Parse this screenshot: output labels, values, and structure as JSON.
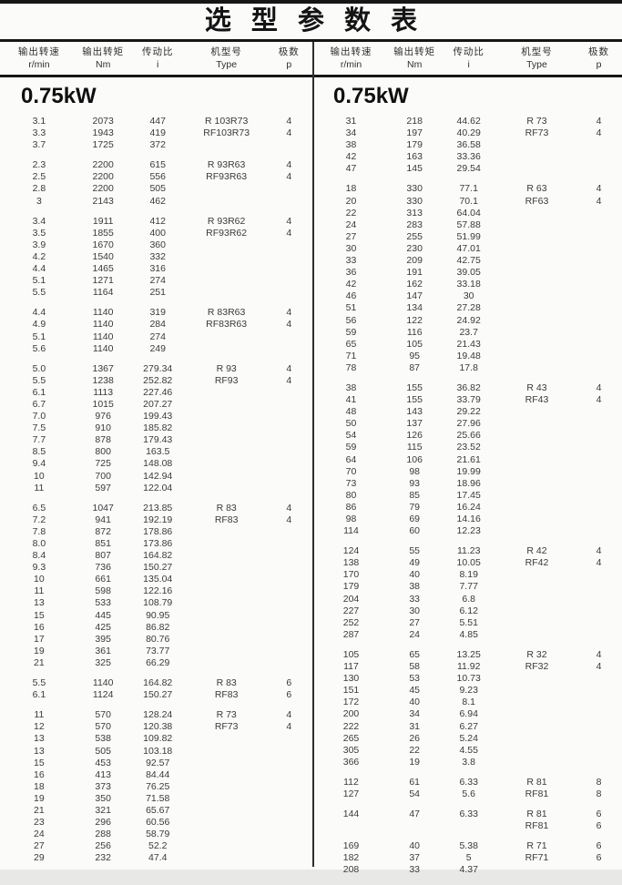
{
  "title": "选 型 参 数 表",
  "power_rating": "0.75kW",
  "table": {
    "columns": [
      {
        "key": "output-speed",
        "label": "输出转速",
        "unit": "r/min"
      },
      {
        "key": "output-torque",
        "label": "输出转矩",
        "unit": "Nm"
      },
      {
        "key": "ratio",
        "label": "传动比",
        "unit": "i"
      },
      {
        "key": "model-type",
        "label": "机型号",
        "unit": "Type"
      },
      {
        "key": "poles",
        "label": "极数",
        "unit": "p"
      }
    ],
    "left_groups": [
      [
        [
          "3.1",
          "2073",
          "447",
          "R 103R73",
          "4"
        ],
        [
          "3.3",
          "1943",
          "419",
          "RF103R73",
          "4"
        ],
        [
          "3.7",
          "1725",
          "372",
          "",
          ""
        ]
      ],
      [
        [
          "2.3",
          "2200",
          "615",
          "R 93R63",
          "4"
        ],
        [
          "2.5",
          "2200",
          "556",
          "RF93R63",
          "4"
        ],
        [
          "2.8",
          "2200",
          "505",
          "",
          ""
        ],
        [
          "3",
          "2143",
          "462",
          "",
          ""
        ]
      ],
      [
        [
          "3.4",
          "1911",
          "412",
          "R 93R62",
          "4"
        ],
        [
          "3.5",
          "1855",
          "400",
          "RF93R62",
          "4"
        ],
        [
          "3.9",
          "1670",
          "360",
          "",
          ""
        ],
        [
          "4.2",
          "1540",
          "332",
          "",
          ""
        ],
        [
          "4.4",
          "1465",
          "316",
          "",
          ""
        ],
        [
          "5.1",
          "1271",
          "274",
          "",
          ""
        ],
        [
          "5.5",
          "1164",
          "251",
          "",
          ""
        ]
      ],
      [
        [
          "4.4",
          "1140",
          "319",
          "R 83R63",
          "4"
        ],
        [
          "4.9",
          "1140",
          "284",
          "RF83R63",
          "4"
        ],
        [
          "5.1",
          "1140",
          "274",
          "",
          ""
        ],
        [
          "5.6",
          "1140",
          "249",
          "",
          ""
        ]
      ],
      [
        [
          "5.0",
          "1367",
          "279.34",
          "R 93",
          "4"
        ],
        [
          "5.5",
          "1238",
          "252.82",
          "RF93",
          "4"
        ],
        [
          "6.1",
          "1113",
          "227.46",
          "",
          ""
        ],
        [
          "6.7",
          "1015",
          "207.27",
          "",
          ""
        ],
        [
          "7.0",
          "976",
          "199.43",
          "",
          ""
        ],
        [
          "7.5",
          "910",
          "185.82",
          "",
          ""
        ],
        [
          "7.7",
          "878",
          "179.43",
          "",
          ""
        ],
        [
          "8.5",
          "800",
          "163.5",
          "",
          ""
        ],
        [
          "9.4",
          "725",
          "148.08",
          "",
          ""
        ],
        [
          "10",
          "700",
          "142.94",
          "",
          ""
        ],
        [
          "11",
          "597",
          "122.04",
          "",
          ""
        ]
      ],
      [
        [
          "6.5",
          "1047",
          "213.85",
          "R 83",
          "4"
        ],
        [
          "7.2",
          "941",
          "192.19",
          "RF83",
          "4"
        ],
        [
          "7.8",
          "872",
          "178.86",
          "",
          ""
        ],
        [
          "8.0",
          "851",
          "173.86",
          "",
          ""
        ],
        [
          "8.4",
          "807",
          "164.82",
          "",
          ""
        ],
        [
          "9.3",
          "736",
          "150.27",
          "",
          ""
        ],
        [
          "10",
          "661",
          "135.04",
          "",
          ""
        ],
        [
          "11",
          "598",
          "122.16",
          "",
          ""
        ],
        [
          "13",
          "533",
          "108.79",
          "",
          ""
        ],
        [
          "15",
          "445",
          "90.95",
          "",
          ""
        ],
        [
          "16",
          "425",
          "86.82",
          "",
          ""
        ],
        [
          "17",
          "395",
          "80.76",
          "",
          ""
        ],
        [
          "19",
          "361",
          "73.77",
          "",
          ""
        ],
        [
          "21",
          "325",
          "66.29",
          "",
          ""
        ]
      ],
      [
        [
          "5.5",
          "1140",
          "164.82",
          "R 83",
          "6"
        ],
        [
          "6.1",
          "1124",
          "150.27",
          "RF83",
          "6"
        ]
      ],
      [
        [
          "11",
          "570",
          "128.24",
          "R 73",
          "4"
        ],
        [
          "12",
          "570",
          "120.38",
          "RF73",
          "4"
        ],
        [
          "13",
          "538",
          "109.82",
          "",
          ""
        ],
        [
          "13",
          "505",
          "103.18",
          "",
          ""
        ],
        [
          "15",
          "453",
          "92.57",
          "",
          ""
        ],
        [
          "16",
          "413",
          "84.44",
          "",
          ""
        ],
        [
          "18",
          "373",
          "76.25",
          "",
          ""
        ],
        [
          "19",
          "350",
          "71.58",
          "",
          ""
        ],
        [
          "21",
          "321",
          "65.67",
          "",
          ""
        ],
        [
          "23",
          "296",
          "60.56",
          "",
          ""
        ],
        [
          "24",
          "288",
          "58.79",
          "",
          ""
        ],
        [
          "27",
          "256",
          "52.2",
          "",
          ""
        ],
        [
          "29",
          "232",
          "47.4",
          "",
          ""
        ]
      ]
    ],
    "right_groups": [
      [
        [
          "31",
          "218",
          "44.62",
          "R 73",
          "4"
        ],
        [
          "34",
          "197",
          "40.29",
          "RF73",
          "4"
        ],
        [
          "38",
          "179",
          "36.58",
          "",
          ""
        ],
        [
          "42",
          "163",
          "33.36",
          "",
          ""
        ],
        [
          "47",
          "145",
          "29.54",
          "",
          ""
        ]
      ],
      [
        [
          "18",
          "330",
          "77.1",
          "R 63",
          "4"
        ],
        [
          "20",
          "330",
          "70.1",
          "RF63",
          "4"
        ],
        [
          "22",
          "313",
          "64.04",
          "",
          ""
        ],
        [
          "24",
          "283",
          "57.88",
          "",
          ""
        ],
        [
          "27",
          "255",
          "51.99",
          "",
          ""
        ],
        [
          "30",
          "230",
          "47.01",
          "",
          ""
        ],
        [
          "33",
          "209",
          "42.75",
          "",
          ""
        ],
        [
          "36",
          "191",
          "39.05",
          "",
          ""
        ],
        [
          "42",
          "162",
          "33.18",
          "",
          ""
        ],
        [
          "46",
          "147",
          "30",
          "",
          ""
        ],
        [
          "51",
          "134",
          "27.28",
          "",
          ""
        ],
        [
          "56",
          "122",
          "24.92",
          "",
          ""
        ],
        [
          "59",
          "116",
          "23.7",
          "",
          ""
        ],
        [
          "65",
          "105",
          "21.43",
          "",
          ""
        ],
        [
          "71",
          "95",
          "19.48",
          "",
          ""
        ],
        [
          "78",
          "87",
          "17.8",
          "",
          ""
        ]
      ],
      [
        [
          "38",
          "155",
          "36.82",
          "R 43",
          "4"
        ],
        [
          "41",
          "155",
          "33.79",
          "RF43",
          "4"
        ],
        [
          "48",
          "143",
          "29.22",
          "",
          ""
        ],
        [
          "50",
          "137",
          "27.96",
          "",
          ""
        ],
        [
          "54",
          "126",
          "25.66",
          "",
          ""
        ],
        [
          "59",
          "115",
          "23.52",
          "",
          ""
        ],
        [
          "64",
          "106",
          "21.61",
          "",
          ""
        ],
        [
          "70",
          "98",
          "19.99",
          "",
          ""
        ],
        [
          "73",
          "93",
          "18.96",
          "",
          ""
        ],
        [
          "80",
          "85",
          "17.45",
          "",
          ""
        ],
        [
          "86",
          "79",
          "16.24",
          "",
          ""
        ],
        [
          "98",
          "69",
          "14.16",
          "",
          ""
        ],
        [
          "114",
          "60",
          "12.23",
          "",
          ""
        ]
      ],
      [
        [
          "124",
          "55",
          "11.23",
          "R 42",
          "4"
        ],
        [
          "138",
          "49",
          "10.05",
          "RF42",
          "4"
        ],
        [
          "170",
          "40",
          "8.19",
          "",
          ""
        ],
        [
          "179",
          "38",
          "7.77",
          "",
          ""
        ],
        [
          "204",
          "33",
          "6.8",
          "",
          ""
        ],
        [
          "227",
          "30",
          "6.12",
          "",
          ""
        ],
        [
          "252",
          "27",
          "5.51",
          "",
          ""
        ],
        [
          "287",
          "24",
          "4.85",
          "",
          ""
        ]
      ],
      [
        [
          "105",
          "65",
          "13.25",
          "R 32",
          "4"
        ],
        [
          "117",
          "58",
          "11.92",
          "RF32",
          "4"
        ],
        [
          "130",
          "53",
          "10.73",
          "",
          ""
        ],
        [
          "151",
          "45",
          "9.23",
          "",
          ""
        ],
        [
          "172",
          "40",
          "8.1",
          "",
          ""
        ],
        [
          "200",
          "34",
          "6.94",
          "",
          ""
        ],
        [
          "222",
          "31",
          "6.27",
          "",
          ""
        ],
        [
          "265",
          "26",
          "5.24",
          "",
          ""
        ],
        [
          "305",
          "22",
          "4.55",
          "",
          ""
        ],
        [
          "366",
          "19",
          "3.8",
          "",
          ""
        ]
      ],
      [
        [
          "112",
          "61",
          "6.33",
          "R 81",
          "8"
        ],
        [
          "127",
          "54",
          "5.6",
          "RF81",
          "8"
        ]
      ],
      [
        [
          "144",
          "47",
          "6.33",
          "R 81",
          "6"
        ],
        [
          "",
          "",
          "",
          "RF81",
          "6"
        ]
      ],
      [
        [
          "169",
          "40",
          "5.38",
          "R 71",
          "6"
        ],
        [
          "182",
          "37",
          "5",
          "RF71",
          "6"
        ],
        [
          "208",
          "33",
          "4.37",
          "",
          ""
        ]
      ]
    ]
  },
  "colors": {
    "rule": "#161616",
    "text": "#3a3a3a",
    "title_text": "#141414",
    "background": "#fbfbfa"
  }
}
